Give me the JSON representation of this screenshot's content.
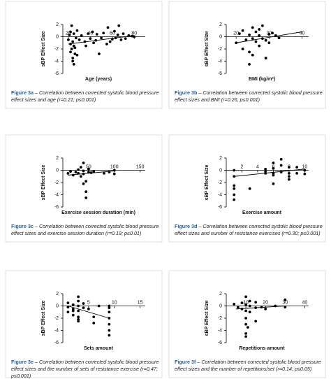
{
  "chart_data": [
    {
      "type": "scatter",
      "y_label": "sBP Effect Size",
      "x_label": "Age (years)",
      "figure_label": "Figure 3a",
      "caption": "– Correlation between corrected systolic blood pressure effect sizes and age (r=0.21; p≤0.001)",
      "x": [
        20,
        21,
        22,
        22,
        23,
        24,
        24,
        25,
        25,
        26,
        27,
        28,
        28,
        30,
        32,
        35,
        36,
        38,
        40,
        42,
        43,
        45,
        46,
        48,
        50,
        52,
        55,
        56,
        58,
        60,
        62,
        63,
        65,
        66,
        68,
        70,
        72,
        75,
        78,
        80,
        24,
        23,
        26,
        22,
        25
      ],
      "y": [
        -0.5,
        0.3,
        -1.2,
        -2.5,
        1.8,
        -3.5,
        -0.8,
        -4.5,
        0.5,
        -1.8,
        -0.2,
        -3,
        1,
        -0.5,
        0.2,
        -0.8,
        -1.5,
        0.5,
        -0.3,
        0.8,
        -1,
        -0.6,
        0.4,
        -2.8,
        -0.2,
        0.6,
        -1.2,
        1.5,
        -0.8,
        -0.4,
        0.9,
        -0.2,
        0.3,
        1.8,
        -0.5,
        0.5,
        -0.3,
        0.2,
        0.1,
        0,
        -4,
        -2,
        -2.8,
        0.8,
        -1.5
      ],
      "trend_x": [
        20,
        80
      ],
      "trend_y": [
        -1.2,
        0.2
      ],
      "color": "#000000",
      "xlim": [
        15,
        90
      ],
      "xticks": [
        20,
        40,
        60,
        80
      ],
      "ylim": [
        -6,
        2
      ],
      "yticks": [
        -6,
        -4,
        -2,
        0,
        2
      ]
    },
    {
      "type": "scatter",
      "y_label": "sBP Effect Size",
      "x_label": "BMI (kg/m²)",
      "figure_label": "Figure 3b",
      "caption": "– Correlation between corrected systolic blood pressure effect sizes and BMI (r=0.26, p≤0.001)",
      "x": [
        20,
        21,
        22,
        22,
        23,
        24,
        24,
        25,
        25,
        26,
        26,
        27,
        27,
        28,
        28,
        29,
        30,
        30,
        31,
        32,
        33,
        24,
        25,
        27,
        29
      ],
      "y": [
        -1,
        0.5,
        -2,
        1,
        -0.5,
        -4.5,
        0.3,
        -3,
        1.5,
        -0.8,
        0.8,
        -1.5,
        0.2,
        -0.3,
        1.8,
        -0.6,
        0.4,
        -1,
        0.6,
        0.2,
        -0.2,
        -2.5,
        -0.3,
        1.2,
        -3.5
      ],
      "trend_x": [
        20,
        40
      ],
      "trend_y": [
        -1,
        0.8
      ],
      "color": "#000000",
      "xlim": [
        17,
        42
      ],
      "xticks": [
        20,
        30,
        40
      ],
      "ylim": [
        -6,
        2
      ],
      "yticks": [
        -6,
        -4,
        -2,
        0,
        2
      ]
    },
    {
      "type": "scatter",
      "y_label": "sBP Effect Size",
      "x_label": "Exercise session duration (min)",
      "figure_label": "Figure 3c",
      "caption": "– Correlation between corrected systolic blood pressure effect sizes and exercise session duration (r=0.19; p≤0.01)",
      "x": [
        10,
        15,
        20,
        25,
        30,
        30,
        35,
        35,
        40,
        40,
        40,
        45,
        45,
        50,
        50,
        55,
        60,
        80,
        90,
        100,
        100,
        45,
        40
      ],
      "y": [
        -0.5,
        -0.2,
        -0.8,
        -0.3,
        -0.5,
        0.1,
        -1,
        0.5,
        -2.2,
        1.2,
        -0.6,
        -4.5,
        -1.8,
        -0.3,
        0.2,
        -0.4,
        -0.2,
        -0.5,
        -0.3,
        -0.6,
        0,
        -3.5,
        -0.1
      ],
      "trend_x": [
        10,
        100
      ],
      "trend_y": [
        -0.8,
        -0.1
      ],
      "color": "#000000",
      "xlim": [
        0,
        160
      ],
      "xticks": [
        50,
        100,
        150
      ],
      "ylim": [
        -6,
        2
      ],
      "yticks": [
        -6,
        -4,
        -2,
        0,
        2
      ]
    },
    {
      "type": "scatter",
      "y_label": "sBP Effect Size",
      "x_label": "Exercise amount",
      "figure_label": "Figure 3d",
      "caption": "– Correlation between corrected systolic blood pressure effect sizes and number of resistance exercises (r=0.30; p≤0.001)",
      "x": [
        1,
        1,
        1,
        1,
        1,
        1,
        3,
        5,
        5,
        5,
        6,
        6,
        6,
        6,
        7,
        7,
        8,
        8,
        8,
        8,
        9,
        9,
        10,
        10,
        7,
        6
      ],
      "y": [
        0,
        -1,
        -2.5,
        -3,
        -4,
        -4.8,
        -3,
        -0.2,
        0.2,
        -0.5,
        -0.5,
        0.3,
        -0.8,
        -2.2,
        1.8,
        -0.3,
        -0.5,
        -1,
        -1.5,
        0.5,
        0.5,
        -0.5,
        0,
        -0.6,
        0.8,
        1.2
      ],
      "trend_x": [
        1,
        10
      ],
      "trend_y": [
        -1,
        0.2
      ],
      "color": "#000000",
      "xlim": [
        0,
        10.5
      ],
      "xticks": [
        2,
        4,
        6,
        8,
        10
      ],
      "ylim": [
        -6,
        2
      ],
      "yticks": [
        -6,
        -4,
        -2,
        0,
        2
      ]
    },
    {
      "type": "scatter",
      "y_label": "sBP Effect Size",
      "x_label": "Sets amount",
      "figure_label": "Figure 3e",
      "caption": "– Correlation between corrected systolic blood pressure effect sizes and the number of sets of resistance exercise (r=0.47; p≤0.001)",
      "x": [
        1,
        1,
        1,
        2,
        2,
        2,
        3,
        3,
        3,
        3,
        3,
        3,
        4,
        4,
        5,
        6,
        6,
        7,
        9,
        9,
        9,
        9,
        9,
        9,
        9,
        3,
        2
      ],
      "y": [
        0.5,
        -0.2,
        -1,
        0.2,
        -0.5,
        -1.5,
        1.5,
        0.8,
        0,
        -0.8,
        -1.8,
        -2.5,
        -0.3,
        0.4,
        -0.5,
        -1.8,
        -2.8,
        0,
        -0.3,
        -1,
        -2,
        -3,
        -4,
        -4.8,
        0,
        -2.2,
        -0.8
      ],
      "trend_x": [
        1,
        9
      ],
      "trend_y": [
        0,
        -2
      ],
      "color": "#000000",
      "xlim": [
        0,
        16
      ],
      "xticks": [
        5,
        10,
        15
      ],
      "ylim": [
        -6,
        2
      ],
      "yticks": [
        -6,
        -4,
        -2,
        0,
        2
      ]
    },
    {
      "type": "scatter",
      "y_label": "sBP Effect Size",
      "x_label": "Repetitions amount",
      "figure_label": "Figure 3f",
      "caption": "– Correlation between corrected systolic blood pressure effect sizes and the number of repetitions/set (r=0.14; p≤0.05)",
      "x": [
        4,
        6,
        8,
        8,
        10,
        10,
        10,
        10,
        10,
        10,
        12,
        12,
        12,
        15,
        15,
        15,
        18,
        20,
        25,
        30,
        30,
        10,
        11
      ],
      "y": [
        0.3,
        -0.2,
        0.5,
        -0.5,
        1.5,
        0.2,
        -0.8,
        -2,
        -4.5,
        -3,
        0,
        -1,
        0.8,
        -0.3,
        0.6,
        -2.5,
        -0.2,
        -0.5,
        0,
        -0.2,
        1,
        -5,
        -3.5
      ],
      "trend_x": [
        5,
        30
      ],
      "trend_y": [
        -0.5,
        0
      ],
      "color": "#000000",
      "xlim": [
        0,
        42
      ],
      "xticks": [
        10,
        20,
        30,
        40
      ],
      "ylim": [
        -6,
        2
      ],
      "yticks": [
        -6,
        -4,
        -2,
        0,
        2
      ]
    }
  ]
}
